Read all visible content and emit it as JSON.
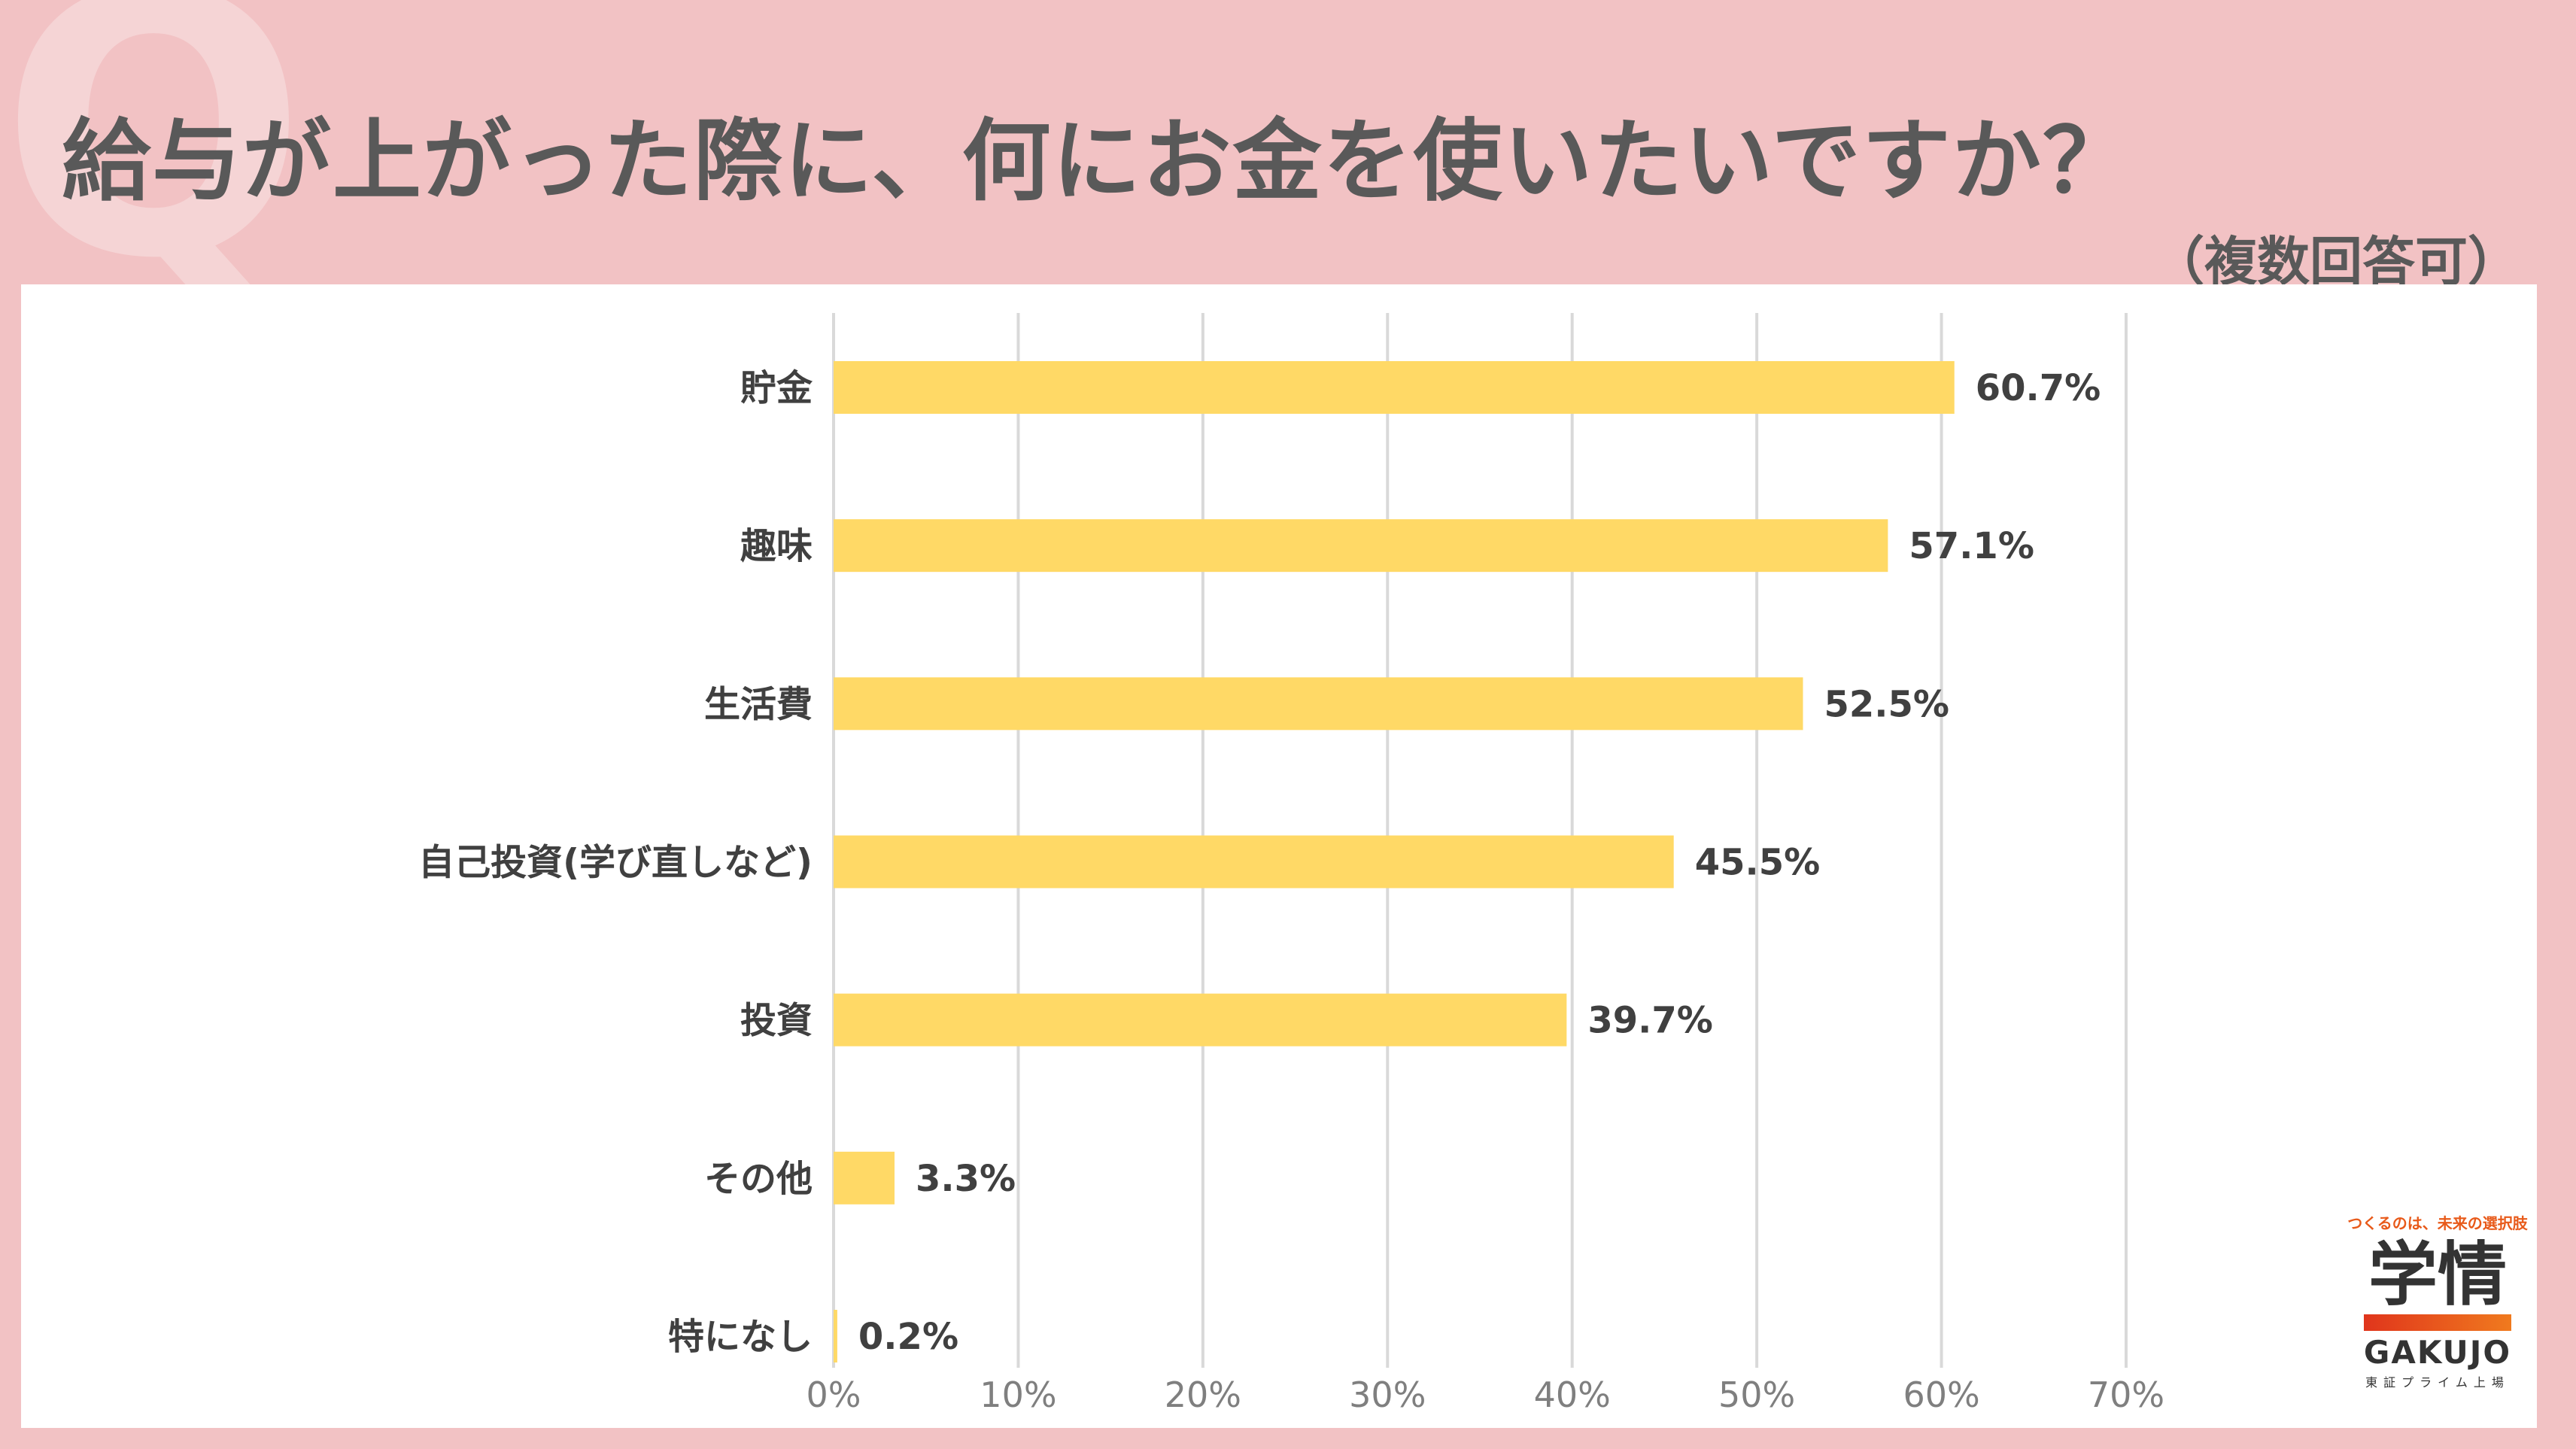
{
  "background_letter": "Q",
  "title": "給与が上がった際に、何にお金を使いたいですか？",
  "subtitle": "（複数回答可）",
  "chart_data": {
    "type": "bar",
    "orientation": "horizontal",
    "categories": [
      "貯金",
      "趣味",
      "生活費",
      "自己投資(学び直しなど)",
      "投資",
      "その他",
      "特になし"
    ],
    "values": [
      60.7,
      57.1,
      52.5,
      45.5,
      39.7,
      3.3,
      0.2
    ],
    "data_labels": [
      "60.7%",
      "57.1%",
      "52.5%",
      "45.5%",
      "39.7%",
      "3.3%",
      "0.2%"
    ],
    "xlim": [
      0,
      70
    ],
    "xticks": [
      0,
      10,
      20,
      30,
      40,
      50,
      60,
      70
    ],
    "xtick_labels": [
      "0%",
      "10%",
      "20%",
      "30%",
      "40%",
      "50%",
      "60%",
      "70%"
    ],
    "grid": true,
    "bar_color": "#ffd966",
    "grid_color": "#d9d9d9"
  },
  "logo": {
    "tagline": "つくるのは、未来の選択肢",
    "mark": "学情",
    "wordmark": "GAKUJO",
    "listing": "東証プライム上場"
  }
}
